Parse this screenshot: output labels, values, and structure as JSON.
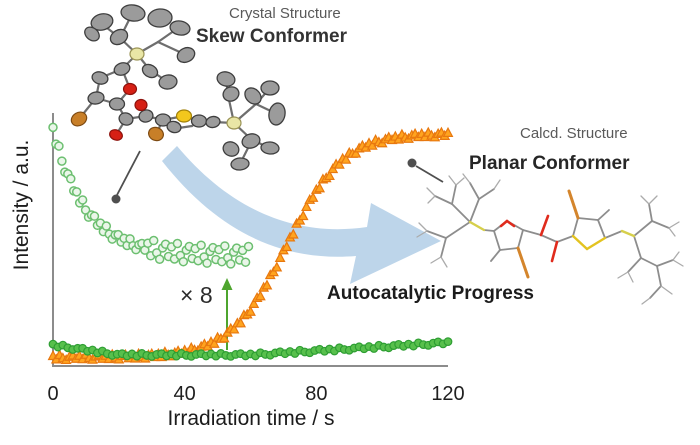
{
  "figure": {
    "annotations": {
      "crystal_subtitle": "Crystal Structure",
      "crystal_title": "Skew Conformer",
      "calcd_subtitle": "Calcd. Structure",
      "calcd_title": "Planar Conformer",
      "progress_label": "Autocatalytic Progress",
      "magnification_label": "× 8"
    },
    "colors": {
      "axis": "#8c8c8c",
      "arrow_blue": "#bdd5ea",
      "magnify_arrow_green": "#4ea52e",
      "leader_dot_gray": "#4f4f4f",
      "open_circle_fill": "#eaf6e9",
      "open_circle_stroke": "#6cbf70",
      "triangle_fill": "#ffa41f",
      "triangle_stroke": "#e8780f",
      "filled_circle_fill": "#58c04c",
      "filled_circle_stroke": "#2e9e33"
    }
  },
  "chart_data": {
    "type": "scatter",
    "title": "",
    "xlabel": "Irradiation time / s",
    "ylabel": "Intensity / a.u.",
    "xlim": [
      0,
      120
    ],
    "x_ticks": [
      0,
      40,
      80,
      120
    ],
    "grid": false,
    "legend": "none",
    "y_units": "normalized intensity (0-1 of axis height, arbitrary units)",
    "series": [
      {
        "name": "planar-conformer-growth",
        "label": "Planar conformer signal (autocatalytic sigmoidal growth)",
        "marker": "triangle",
        "fill": "#ffa41f",
        "stroke": "#e8780f",
        "t_start": 0,
        "t_step": 1,
        "values": [
          0.041,
          0.027,
          0.045,
          0.032,
          0.025,
          0.038,
          0.043,
          0.03,
          0.042,
          0.028,
          0.046,
          0.033,
          0.026,
          0.039,
          0.044,
          0.03,
          0.042,
          0.029,
          0.047,
          0.034,
          0.027,
          0.041,
          0.046,
          0.032,
          0.045,
          0.031,
          0.05,
          0.037,
          0.031,
          0.045,
          0.05,
          0.037,
          0.05,
          0.037,
          0.057,
          0.045,
          0.04,
          0.054,
          0.061,
          0.05,
          0.064,
          0.053,
          0.074,
          0.065,
          0.062,
          0.079,
          0.089,
          0.08,
          0.098,
          0.091,
          0.116,
          0.111,
          0.113,
          0.136,
          0.152,
          0.149,
          0.174,
          0.174,
          0.207,
          0.21,
          0.221,
          0.253,
          0.277,
          0.284,
          0.319,
          0.328,
          0.37,
          0.382,
          0.401,
          0.44,
          0.471,
          0.484,
          0.523,
          0.535,
          0.579,
          0.592,
          0.61,
          0.647,
          0.676,
          0.684,
          0.717,
          0.723,
          0.759,
          0.764,
          0.773,
          0.801,
          0.82,
          0.819,
          0.843,
          0.839,
          0.867,
          0.863,
          0.864,
          0.885,
          0.896,
          0.888,
          0.906,
          0.896,
          0.919,
          0.91,
          0.906,
          0.922,
          0.93,
          0.919,
          0.933,
          0.921,
          0.941,
          0.929,
          0.924,
          0.938,
          0.944,
          0.931,
          0.944,
          0.931,
          0.949,
          0.937,
          0.93,
          0.944,
          0.949,
          0.936,
          0.948
        ]
      },
      {
        "name": "skew-conformer-decay-raw",
        "label": "Skew conformer signal (raw, unmagnified)",
        "marker": "filled-circle",
        "fill": "#58c04c",
        "stroke": "#2e9e33",
        "t_start": 0,
        "t_step": 1.5,
        "values": [
          0.089,
          0.077,
          0.085,
          0.074,
          0.067,
          0.072,
          0.072,
          0.06,
          0.065,
          0.053,
          0.061,
          0.05,
          0.043,
          0.048,
          0.05,
          0.041,
          0.049,
          0.04,
          0.051,
          0.043,
          0.039,
          0.047,
          0.05,
          0.041,
          0.049,
          0.04,
          0.051,
          0.043,
          0.039,
          0.047,
          0.05,
          0.041,
          0.049,
          0.04,
          0.051,
          0.043,
          0.039,
          0.047,
          0.05,
          0.041,
          0.049,
          0.041,
          0.054,
          0.047,
          0.044,
          0.053,
          0.058,
          0.05,
          0.059,
          0.051,
          0.064,
          0.057,
          0.054,
          0.063,
          0.068,
          0.06,
          0.069,
          0.061,
          0.074,
          0.067,
          0.064,
          0.073,
          0.078,
          0.07,
          0.079,
          0.071,
          0.084,
          0.077,
          0.074,
          0.083,
          0.088,
          0.08,
          0.089,
          0.081,
          0.094,
          0.087,
          0.084,
          0.093,
          0.098,
          0.09,
          0.099
        ]
      },
      {
        "name": "skew-conformer-decay-x8",
        "label": "Skew conformer signal magnified × 8",
        "marker": "open-circle",
        "fill": "#eaf6e9",
        "stroke": "#6cbf70",
        "t_start": 0,
        "t_step": 0.9,
        "values": [
          0.97,
          0.902,
          0.894,
          0.833,
          0.788,
          0.781,
          0.761,
          0.712,
          0.708,
          0.663,
          0.675,
          0.634,
          0.605,
          0.614,
          0.609,
          0.572,
          0.581,
          0.546,
          0.569,
          0.536,
          0.516,
          0.533,
          0.534,
          0.504,
          0.519,
          0.49,
          0.517,
          0.489,
          0.473,
          0.493,
          0.498,
          0.471,
          0.499,
          0.448,
          0.51,
          0.46,
          0.434,
          0.48,
          0.495,
          0.445,
          0.484,
          0.435,
          0.498,
          0.449,
          0.424,
          0.471,
          0.486,
          0.437,
          0.477,
          0.428,
          0.491,
          0.443,
          0.418,
          0.466,
          0.481,
          0.433,
          0.473,
          0.424,
          0.488,
          0.44,
          0.415,
          0.463,
          0.479,
          0.431,
          0.47,
          0.422,
          0.486
        ]
      }
    ]
  }
}
